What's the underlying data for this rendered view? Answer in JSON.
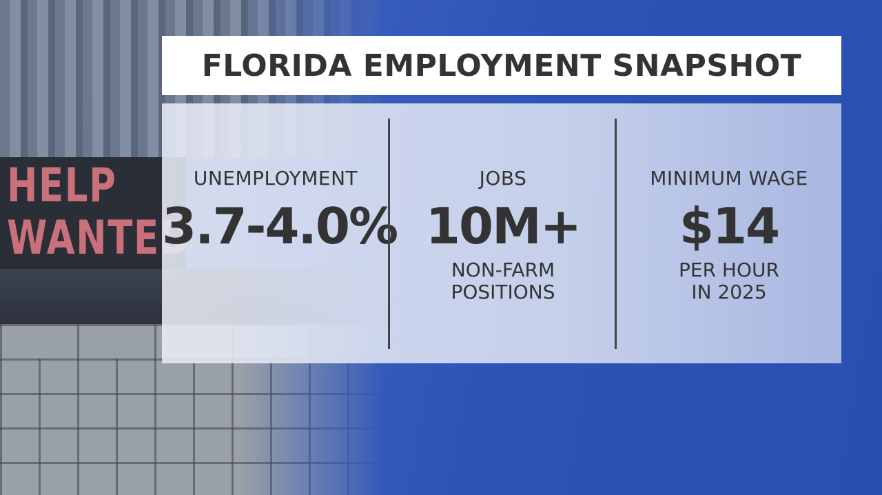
{
  "background": {
    "sign_line1": "HELP",
    "sign_line2": "WANTED",
    "accent_blue": "#2f56b8",
    "sign_text_color": "#c9707a"
  },
  "title": "FLORIDA EMPLOYMENT SNAPSHOT",
  "stats": [
    {
      "label": "UNEMPLOYMENT",
      "value": "3.7-4.0%",
      "sub_line1": "",
      "sub_line2": ""
    },
    {
      "label": "JOBS",
      "value": "10M+",
      "sub_line1": "NON-FARM",
      "sub_line2": "POSITIONS"
    },
    {
      "label": "MINIMUM WAGE",
      "value": "$14",
      "sub_line1": "PER HOUR",
      "sub_line2": "IN 2025"
    }
  ]
}
